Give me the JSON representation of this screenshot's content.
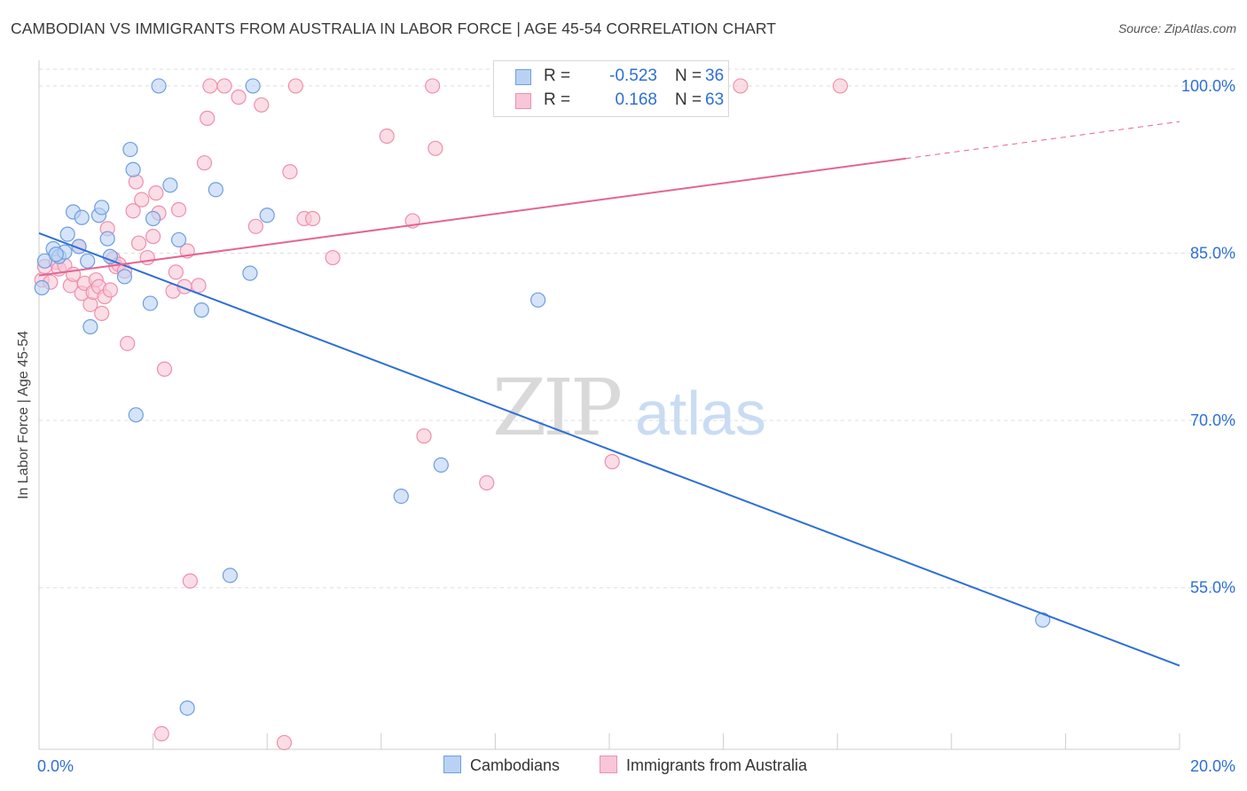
{
  "title": "CAMBODIAN VS IMMIGRANTS FROM AUSTRALIA IN LABOR FORCE | AGE 45-54 CORRELATION CHART",
  "source": "Source: ZipAtlas.com",
  "watermark": {
    "zip": "ZIP",
    "atlas": "atlas"
  },
  "colors": {
    "blue": "#2d6fd6",
    "blue_fill": "#b9d2f3",
    "blue_stroke": "#6e9ee0",
    "pink": "#e36590",
    "pink_fill": "#f8c6d6",
    "pink_stroke": "#ee8fb0",
    "grid": "#dddddd",
    "axis_label": "#2d6fd6"
  },
  "legend": {
    "rows": [
      {
        "r_label": "R =",
        "r_value": "-0.523",
        "n_label": "N =",
        "n_value": "36"
      },
      {
        "r_label": "R =",
        "r_value": "0.168",
        "n_label": "N =",
        "n_value": "63"
      }
    ]
  },
  "bottom_legend": {
    "series1": "Cambodians",
    "series2": "Immigrants from Australia"
  },
  "chart_data": {
    "type": "scatter",
    "title": "CAMBODIAN VS IMMIGRANTS FROM AUSTRALIA IN LABOR FORCE | AGE 45-54 CORRELATION CHART",
    "xlabel": "",
    "ylabel": "In Labor Force | Age 45-54",
    "xlim": [
      0,
      20
    ],
    "ylim": [
      40.5,
      102.3
    ],
    "x_tick_labels": [
      "0.0%",
      "20.0%"
    ],
    "y_ticks": [
      55,
      70,
      85,
      100
    ],
    "y_tick_labels": [
      "55.0%",
      "70.0%",
      "85.0%",
      "100.0%"
    ],
    "grid": true,
    "series": [
      {
        "name": "Cambodians",
        "color": "#2d6fd6",
        "r": -0.523,
        "n": 36,
        "trend": {
          "x0": 0,
          "y0": 86.8,
          "x1": 20,
          "y1": 48.0,
          "dashed_from": null
        },
        "points": [
          [
            0.05,
            81.9
          ],
          [
            0.1,
            84.3
          ],
          [
            0.25,
            85.4
          ],
          [
            0.35,
            84.7
          ],
          [
            0.45,
            85.1
          ],
          [
            0.5,
            86.7
          ],
          [
            0.6,
            88.7
          ],
          [
            0.7,
            85.6
          ],
          [
            0.75,
            88.2
          ],
          [
            0.85,
            84.3
          ],
          [
            0.9,
            78.4
          ],
          [
            1.05,
            88.4
          ],
          [
            1.1,
            89.1
          ],
          [
            1.2,
            86.3
          ],
          [
            1.25,
            84.7
          ],
          [
            1.5,
            82.9
          ],
          [
            1.6,
            94.3
          ],
          [
            1.65,
            92.5
          ],
          [
            1.7,
            70.5
          ],
          [
            1.95,
            80.5
          ],
          [
            2.0,
            88.1
          ],
          [
            2.1,
            100.0
          ],
          [
            2.3,
            91.1
          ],
          [
            2.45,
            86.2
          ],
          [
            2.6,
            44.2
          ],
          [
            2.85,
            79.9
          ],
          [
            3.1,
            90.7
          ],
          [
            3.35,
            56.1
          ],
          [
            3.7,
            83.2
          ],
          [
            3.75,
            100.0
          ],
          [
            4.0,
            88.4
          ],
          [
            6.35,
            63.2
          ],
          [
            7.05,
            66.0
          ],
          [
            8.75,
            80.8
          ],
          [
            17.6,
            52.1
          ],
          [
            0.3,
            84.9
          ]
        ]
      },
      {
        "name": "Immigrants from Australia",
        "color": "#e36590",
        "r": 0.168,
        "n": 63,
        "trend": {
          "x0": 0,
          "y0": 83.0,
          "x1": 20,
          "y1": 96.8,
          "dashed_from": 15.2
        },
        "points": [
          [
            0.05,
            82.6
          ],
          [
            0.1,
            83.8
          ],
          [
            0.2,
            82.4
          ],
          [
            0.3,
            84.2
          ],
          [
            0.35,
            83.6
          ],
          [
            0.45,
            83.9
          ],
          [
            0.55,
            82.1
          ],
          [
            0.6,
            83.1
          ],
          [
            0.7,
            85.6
          ],
          [
            0.75,
            81.4
          ],
          [
            0.8,
            82.3
          ],
          [
            0.9,
            80.4
          ],
          [
            0.95,
            81.5
          ],
          [
            1.0,
            82.6
          ],
          [
            1.05,
            82.0
          ],
          [
            1.1,
            79.6
          ],
          [
            1.15,
            81.1
          ],
          [
            1.2,
            87.2
          ],
          [
            1.25,
            81.7
          ],
          [
            1.3,
            84.5
          ],
          [
            1.35,
            83.8
          ],
          [
            1.4,
            84.0
          ],
          [
            1.5,
            83.4
          ],
          [
            1.55,
            76.9
          ],
          [
            1.65,
            88.8
          ],
          [
            1.7,
            91.4
          ],
          [
            1.75,
            85.9
          ],
          [
            1.8,
            89.8
          ],
          [
            1.9,
            84.6
          ],
          [
            2.0,
            86.5
          ],
          [
            2.05,
            90.4
          ],
          [
            2.1,
            88.6
          ],
          [
            2.15,
            41.9
          ],
          [
            2.2,
            74.6
          ],
          [
            2.35,
            81.6
          ],
          [
            2.4,
            83.3
          ],
          [
            2.45,
            88.9
          ],
          [
            2.55,
            82.0
          ],
          [
            2.6,
            85.2
          ],
          [
            2.65,
            55.6
          ],
          [
            2.8,
            82.1
          ],
          [
            2.9,
            93.1
          ],
          [
            2.95,
            97.1
          ],
          [
            3.0,
            100.0
          ],
          [
            3.25,
            100.0
          ],
          [
            3.5,
            99.0
          ],
          [
            3.8,
            87.4
          ],
          [
            3.9,
            98.3
          ],
          [
            4.3,
            41.1
          ],
          [
            4.4,
            92.3
          ],
          [
            4.5,
            100.0
          ],
          [
            4.65,
            88.1
          ],
          [
            4.8,
            88.1
          ],
          [
            5.15,
            84.6
          ],
          [
            6.1,
            95.5
          ],
          [
            6.55,
            87.9
          ],
          [
            6.75,
            68.6
          ],
          [
            6.9,
            100.0
          ],
          [
            6.95,
            94.4
          ],
          [
            7.85,
            64.4
          ],
          [
            10.05,
            66.3
          ],
          [
            12.3,
            100.0
          ],
          [
            14.05,
            100.0
          ]
        ]
      }
    ]
  }
}
